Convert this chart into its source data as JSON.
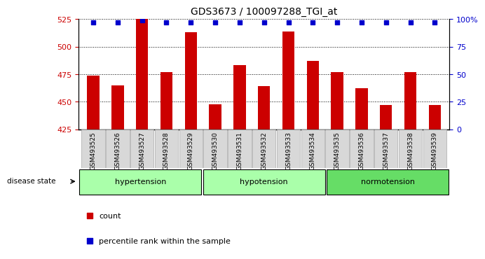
{
  "title": "GDS3673 / 100097288_TGI_at",
  "samples": [
    "GSM493525",
    "GSM493526",
    "GSM493527",
    "GSM493528",
    "GSM493529",
    "GSM493530",
    "GSM493531",
    "GSM493532",
    "GSM493533",
    "GSM493534",
    "GSM493535",
    "GSM493536",
    "GSM493537",
    "GSM493538",
    "GSM493539"
  ],
  "counts": [
    474,
    465,
    525,
    477,
    513,
    448,
    483,
    464,
    514,
    487,
    477,
    462,
    447,
    477,
    447
  ],
  "percentiles": [
    97,
    97,
    99,
    97,
    97,
    97,
    97,
    97,
    97,
    97,
    97,
    97,
    97,
    97,
    97
  ],
  "groups": [
    {
      "label": "hypertension",
      "start": 0,
      "end": 5,
      "color": "#aaffaa"
    },
    {
      "label": "hypotension",
      "start": 5,
      "end": 10,
      "color": "#aaffaa"
    },
    {
      "label": "normotension",
      "start": 10,
      "end": 15,
      "color": "#66dd66"
    }
  ],
  "ylim_left": [
    425,
    525
  ],
  "ylim_right": [
    0,
    100
  ],
  "yticks_left": [
    425,
    450,
    475,
    500,
    525
  ],
  "yticks_right": [
    0,
    25,
    50,
    75,
    100
  ],
  "bar_color": "#cc0000",
  "dot_color": "#0000cc",
  "bar_bottom": 425,
  "legend_count_label": "count",
  "legend_percentile_label": "percentile rank within the sample",
  "disease_state_label": "disease state",
  "right_tick_labels": [
    "0",
    "25",
    "50",
    "75",
    "100%"
  ]
}
